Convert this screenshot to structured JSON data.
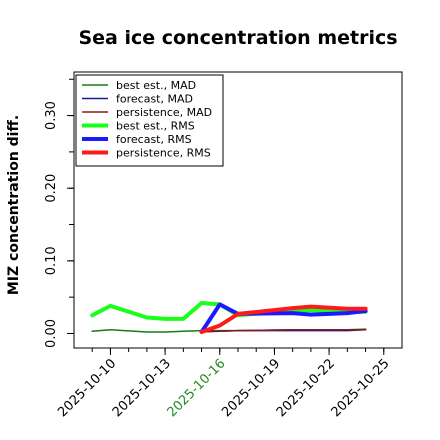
{
  "chart_data": {
    "type": "line",
    "title": "Sea ice concentration metrics",
    "xlabel": "",
    "ylabel": "MIZ concentration diff.",
    "ylim": [
      -0.02,
      0.36
    ],
    "xlim": [
      "2025-10-08",
      "2025-10-26"
    ],
    "yticks": [
      0.0,
      0.1,
      0.2,
      0.3
    ],
    "ytick_labels": [
      "0.00",
      "0.10",
      "0.20",
      "0.30"
    ],
    "xticks": [
      "2025-10-10",
      "2025-10-13",
      "2025-10-16",
      "2025-10-19",
      "2025-10-22",
      "2025-10-25"
    ],
    "xtick_colors": [
      "#000000",
      "#000000",
      "#228B22",
      "#000000",
      "#000000",
      "#000000"
    ],
    "grid": false,
    "legend_position": "top-left",
    "series": [
      {
        "name": "best est., MAD",
        "color": "#1a7a1a",
        "width": 1.5,
        "x": [
          "2025-10-09",
          "2025-10-10",
          "2025-10-12",
          "2025-10-13",
          "2025-10-14",
          "2025-10-15",
          "2025-10-16",
          "2025-10-17",
          "2025-10-20",
          "2025-10-21",
          "2025-10-23",
          "2025-10-24"
        ],
        "y": [
          0.003,
          0.005,
          0.002,
          0.002,
          0.003,
          0.004,
          0.004,
          0.004,
          0.005,
          0.005,
          0.005,
          0.006
        ]
      },
      {
        "name": "forecast, MAD",
        "color": "#1a1a8a",
        "width": 1.5,
        "x": [
          "2025-10-15",
          "2025-10-16",
          "2025-10-17",
          "2025-10-20",
          "2025-10-21",
          "2025-10-23",
          "2025-10-24"
        ],
        "y": [
          0.003,
          0.003,
          0.004,
          0.004,
          0.004,
          0.004,
          0.005
        ]
      },
      {
        "name": "persistence, MAD",
        "color": "#8b1a1a",
        "width": 1.5,
        "x": [
          "2025-10-15",
          "2025-10-16",
          "2025-10-17",
          "2025-10-20",
          "2025-10-21",
          "2025-10-23",
          "2025-10-24"
        ],
        "y": [
          0.002,
          0.003,
          0.004,
          0.005,
          0.005,
          0.005,
          0.005
        ]
      },
      {
        "name": "best est., RMS",
        "color": "#1aff1a",
        "width": 4,
        "x": [
          "2025-10-09",
          "2025-10-10",
          "2025-10-12",
          "2025-10-13",
          "2025-10-14",
          "2025-10-15",
          "2025-10-16",
          "2025-10-17",
          "2025-10-20",
          "2025-10-21",
          "2025-10-23",
          "2025-10-24"
        ],
        "y": [
          0.025,
          0.038,
          0.022,
          0.02,
          0.02,
          0.042,
          0.04,
          0.025,
          0.032,
          0.032,
          0.03,
          0.03
        ]
      },
      {
        "name": "forecast, RMS",
        "color": "#1a1aff",
        "width": 4,
        "x": [
          "2025-10-15",
          "2025-10-16",
          "2025-10-17",
          "2025-10-20",
          "2025-10-21",
          "2025-10-23",
          "2025-10-24"
        ],
        "y": [
          0.002,
          0.04,
          0.027,
          0.028,
          0.026,
          0.028,
          0.031
        ]
      },
      {
        "name": "persistence, RMS",
        "color": "#ff1a1a",
        "width": 4,
        "x": [
          "2025-10-15",
          "2025-10-16",
          "2025-10-17",
          "2025-10-20",
          "2025-10-21",
          "2025-10-23",
          "2025-10-24"
        ],
        "y": [
          0.002,
          0.011,
          0.027,
          0.035,
          0.037,
          0.034,
          0.034
        ]
      }
    ]
  }
}
